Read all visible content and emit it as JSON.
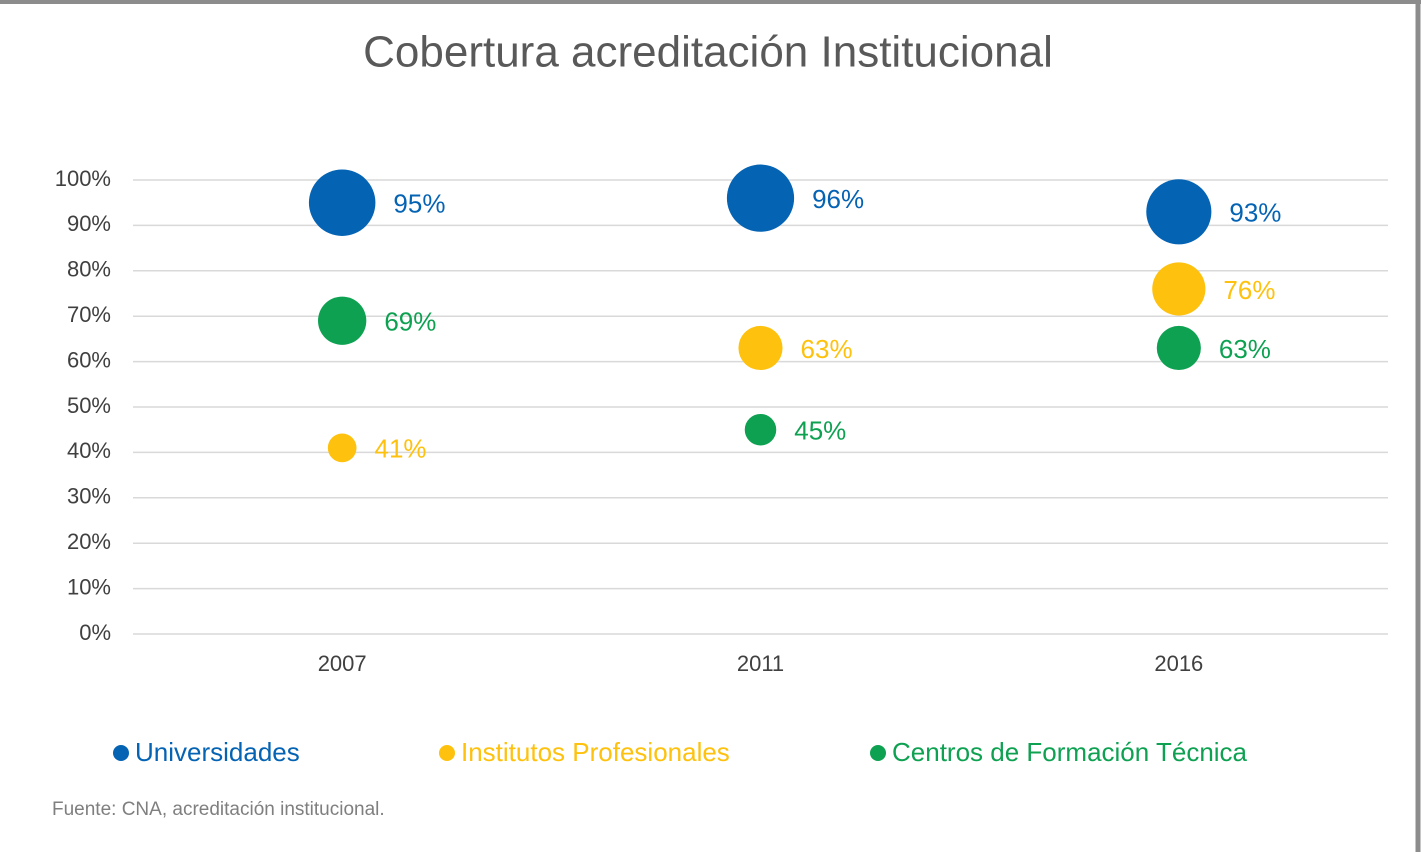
{
  "chart_data": {
    "type": "bubble",
    "title": "Cobertura acreditación Institucional",
    "categories": [
      "2007",
      "2011",
      "2016"
    ],
    "series": [
      {
        "name": "Universidades",
        "color": "#0563b4",
        "values": [
          95,
          96,
          93
        ],
        "value_labels": [
          "95%",
          "96%",
          "93%"
        ]
      },
      {
        "name": "Institutos Profesionales",
        "color": "#fec10e",
        "values": [
          41,
          63,
          76
        ],
        "value_labels": [
          "41%",
          "63%",
          "76%"
        ]
      },
      {
        "name": "Centros de Formación Técnica",
        "color": "#0ea152",
        "values": [
          69,
          45,
          63
        ],
        "value_labels": [
          "69%",
          "45%",
          "63%"
        ]
      }
    ],
    "ylim": [
      0,
      100
    ],
    "yticks": [
      {
        "value": 0,
        "label": "0%"
      },
      {
        "value": 10,
        "label": "10%"
      },
      {
        "value": 20,
        "label": "20%"
      },
      {
        "value": 30,
        "label": "30%"
      },
      {
        "value": 40,
        "label": "40%"
      },
      {
        "value": 50,
        "label": "50%"
      },
      {
        "value": 60,
        "label": "60%"
      },
      {
        "value": 70,
        "label": "70%"
      },
      {
        "value": 80,
        "label": "80%"
      },
      {
        "value": 90,
        "label": "90%"
      },
      {
        "value": 100,
        "label": "100%"
      }
    ],
    "grid": true,
    "legend": "bottom",
    "source": "Fuente: CNA, acreditación institucional."
  }
}
